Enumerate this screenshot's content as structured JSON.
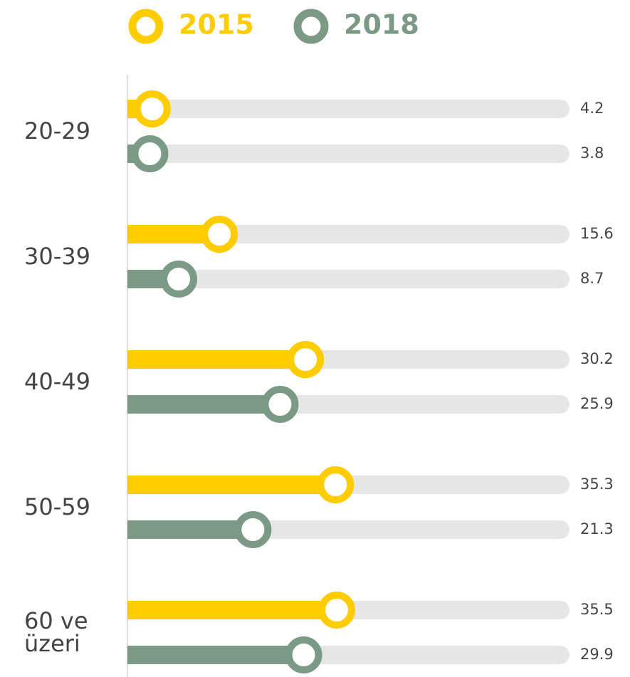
{
  "chart_data": {
    "type": "bar",
    "orientation": "horizontal",
    "categories": [
      "20-29",
      "30-39",
      "40-49",
      "50-59",
      "60 ve üzeri"
    ],
    "series": [
      {
        "name": "2015",
        "color": "#ffcc00",
        "values": [
          4.2,
          15.6,
          30.2,
          35.3,
          35.5
        ]
      },
      {
        "name": "2018",
        "color": "#7a9a85",
        "values": [
          3.8,
          8.7,
          25.9,
          21.3,
          29.9
        ]
      }
    ],
    "xlim": [
      0,
      75
    ]
  }
}
